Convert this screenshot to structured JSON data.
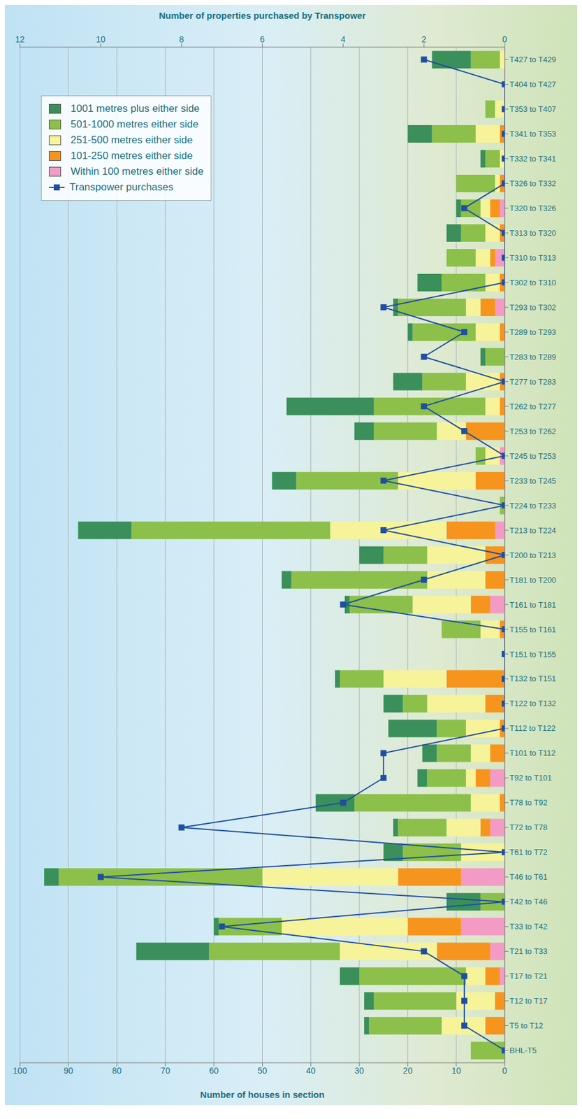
{
  "chart_data": {
    "type": "bar",
    "orientation": "horizontal",
    "stacked": true,
    "grid": true,
    "legend": "upper left",
    "y_label": "Number of houses in section",
    "y2_label": "Number of properties purchased by Transpower",
    "categories": [
      "BHL-T5",
      "T5 to T12",
      "T12 to T17",
      "T17 to T21",
      "T21 to T33",
      "T33 to T42",
      "T42 to T46",
      "T46 to T61",
      "T61 to T72",
      "T72 to T78",
      "T78 to T92",
      "T92 to T101",
      "T101 to T112",
      "T112 to T122",
      "T122 to T132",
      "T132 to T151",
      "T151 to T155",
      "T155 to T161",
      "T161 to T181",
      "T181 to T200",
      "T200 to T213",
      "T213 to T224",
      "T224 to T233",
      "T233 to T245",
      "T245 to T253",
      "T253 to T262",
      "T262 to T277",
      "T277 to T283",
      "T283 to T289",
      "T289 to T293",
      "T293 to T302",
      "T302 to T310",
      "T310 to T313",
      "T313 to T320",
      "T320 to T326",
      "T326 to T332",
      "T332 to T341",
      "T341 to T353",
      "T353 to T407",
      "T404 to T427",
      "T427 to T429"
    ],
    "ylim": [
      0,
      100
    ],
    "yticks": [
      0,
      10,
      20,
      30,
      40,
      50,
      60,
      70,
      80,
      90,
      100
    ],
    "y2lim": [
      0,
      12
    ],
    "y2ticks": [
      0,
      2,
      4,
      6,
      8,
      10,
      12
    ],
    "series": [
      {
        "name": "Within 100 metres either side",
        "color": "#f39bc4",
        "values": [
          0,
          0,
          0,
          1,
          3,
          9,
          0,
          9,
          0,
          3,
          0,
          3,
          0,
          0,
          0,
          0,
          0,
          0,
          3,
          0,
          0,
          2,
          0,
          0,
          1,
          0,
          0,
          0,
          0,
          0,
          2,
          0,
          2,
          0,
          1,
          0,
          0,
          0,
          0,
          0,
          0
        ]
      },
      {
        "name": "101-250 metres either side",
        "color": "#f7941d",
        "values": [
          0,
          4,
          2,
          3,
          11,
          11,
          0,
          13,
          0,
          2,
          1,
          3,
          3,
          1,
          4,
          12,
          0,
          1,
          4,
          4,
          4,
          10,
          0,
          6,
          0,
          8,
          1,
          1,
          0,
          1,
          3,
          1,
          1,
          1,
          2,
          1,
          0,
          1,
          0,
          0,
          0
        ]
      },
      {
        "name": "251-500 metres either side",
        "color": "#f7f39a",
        "values": [
          0,
          9,
          8,
          4,
          20,
          26,
          0,
          28,
          9,
          7,
          6,
          2,
          4,
          7,
          12,
          13,
          0,
          4,
          12,
          12,
          12,
          24,
          0,
          16,
          3,
          6,
          3,
          7,
          0,
          5,
          3,
          3,
          3,
          3,
          2,
          1,
          1,
          5,
          2,
          0,
          1
        ]
      },
      {
        "name": "501-1000 metres either side",
        "color": "#8cc04a",
        "values": [
          7,
          15,
          17,
          22,
          27,
          13,
          5,
          42,
          12,
          10,
          24,
          8,
          7,
          6,
          5,
          9,
          0,
          8,
          13,
          28,
          9,
          41,
          1,
          21,
          2,
          13,
          23,
          9,
          4,
          13,
          14,
          9,
          6,
          5,
          4,
          8,
          3,
          9,
          2,
          0,
          6
        ]
      },
      {
        "name": "1001 metres plus either side",
        "color": "#3a8f5a",
        "values": [
          0,
          1,
          2,
          4,
          15,
          1,
          7,
          3,
          4,
          1,
          8,
          2,
          3,
          10,
          4,
          1,
          0,
          0,
          1,
          2,
          5,
          11,
          0,
          5,
          0,
          4,
          18,
          6,
          1,
          1,
          1,
          5,
          0,
          3,
          1,
          0,
          1,
          5,
          0,
          0,
          8
        ]
      },
      {
        "name": "Transpower purchases",
        "type": "line",
        "axis": "y2",
        "color": "#1f4fa0",
        "marker": "square",
        "values": [
          0,
          1,
          1,
          1,
          2,
          7,
          0,
          10,
          0,
          8,
          4,
          3,
          3,
          0,
          0,
          0,
          0,
          0,
          4,
          2,
          0,
          3,
          0,
          3,
          0,
          1,
          2,
          0,
          2,
          1,
          3,
          0,
          0,
          0,
          1,
          0,
          0,
          0,
          0,
          0,
          2
        ]
      }
    ]
  }
}
